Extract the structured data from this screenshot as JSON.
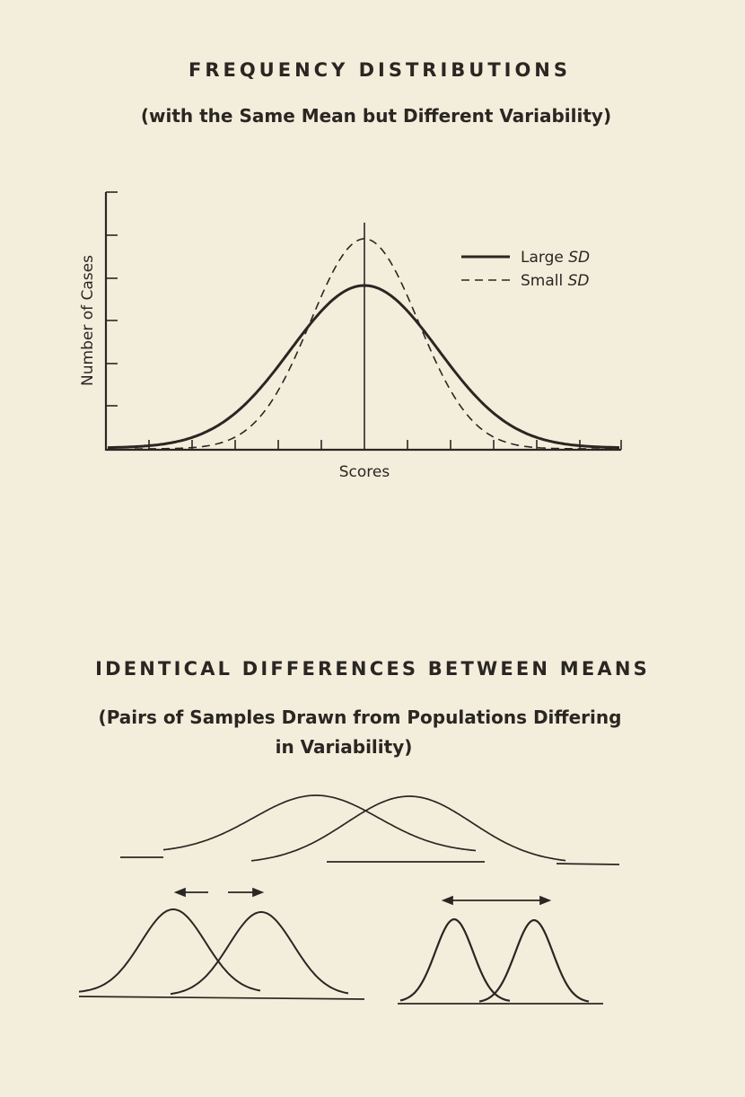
{
  "figure1": {
    "title": "FREQUENCY DISTRIBUTIONS",
    "subtitle": "(with the Same Mean but Different Variability)",
    "ylabel": "Number of Cases",
    "xlabel": "Scores",
    "legend": {
      "large": {
        "prefix": "Large ",
        "sd": "SD"
      },
      "small": {
        "prefix": "Small ",
        "sd": "SD"
      }
    }
  },
  "figure2": {
    "title": "IDENTICAL DIFFERENCES BETWEEN MEANS",
    "subtitle_line1": "(Pairs of Samples Drawn from Populations Differing",
    "subtitle_line2": "in Variability)"
  },
  "colors": {
    "ink": "#2a2622",
    "paper": "#f3eedc"
  }
}
